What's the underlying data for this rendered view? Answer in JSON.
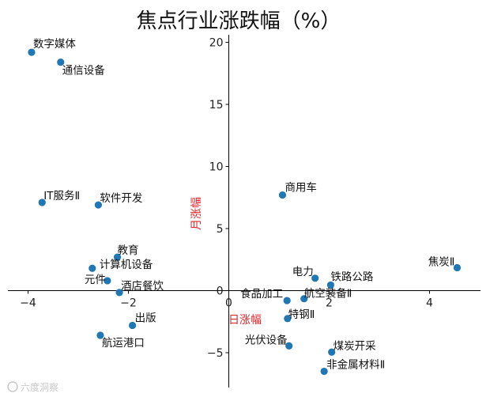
{
  "chart_data": {
    "type": "scatter",
    "title": "焦点行业涨跌幅（%）",
    "xlabel": "日涨幅",
    "ylabel": "月涨幅",
    "label_color": "#e0242b",
    "point_color": "#1f77b4",
    "xlim": [
      -4.3,
      5.2
    ],
    "ylim": [
      -7.8,
      21.0
    ],
    "xticks": [
      -4,
      -2,
      0,
      2,
      4
    ],
    "yticks": [
      -5,
      0,
      5,
      10,
      15,
      20
    ],
    "points": [
      {
        "name": "数字媒体",
        "x": -3.93,
        "y": 19.2
      },
      {
        "name": "通信设备",
        "x": -3.35,
        "y": 18.4
      },
      {
        "name": "IT服务Ⅱ",
        "x": -3.72,
        "y": 7.1
      },
      {
        "name": "软件开发",
        "x": -2.6,
        "y": 6.9
      },
      {
        "name": "教育",
        "x": -2.22,
        "y": 2.7
      },
      {
        "name": "计算机设备",
        "x": -2.72,
        "y": 1.8
      },
      {
        "name": "元件",
        "x": -2.42,
        "y": 0.8
      },
      {
        "name": "酒店餐饮",
        "x": -2.18,
        "y": -0.15
      },
      {
        "name": "出版",
        "x": -1.92,
        "y": -2.8
      },
      {
        "name": "航运港口",
        "x": -2.56,
        "y": -3.6
      },
      {
        "name": "商用车",
        "x": 1.07,
        "y": 7.7
      },
      {
        "name": "电力",
        "x": 1.72,
        "y": 1.0
      },
      {
        "name": "铁路公路",
        "x": 2.03,
        "y": 0.45
      },
      {
        "name": "焦炭Ⅱ",
        "x": 4.55,
        "y": 1.85
      },
      {
        "name": "食品加工",
        "x": 1.16,
        "y": -0.8
      },
      {
        "name": "航空装备Ⅱ",
        "x": 1.5,
        "y": -0.65
      },
      {
        "name": "特钢Ⅱ",
        "x": 1.17,
        "y": -2.25
      },
      {
        "name": "光伏设备",
        "x": 1.2,
        "y": -4.45
      },
      {
        "name": "煤炭开采",
        "x": 2.05,
        "y": -4.95
      },
      {
        "name": "非金属材料Ⅱ",
        "x": 1.9,
        "y": -6.5
      }
    ]
  },
  "watermark": "六度洞察"
}
